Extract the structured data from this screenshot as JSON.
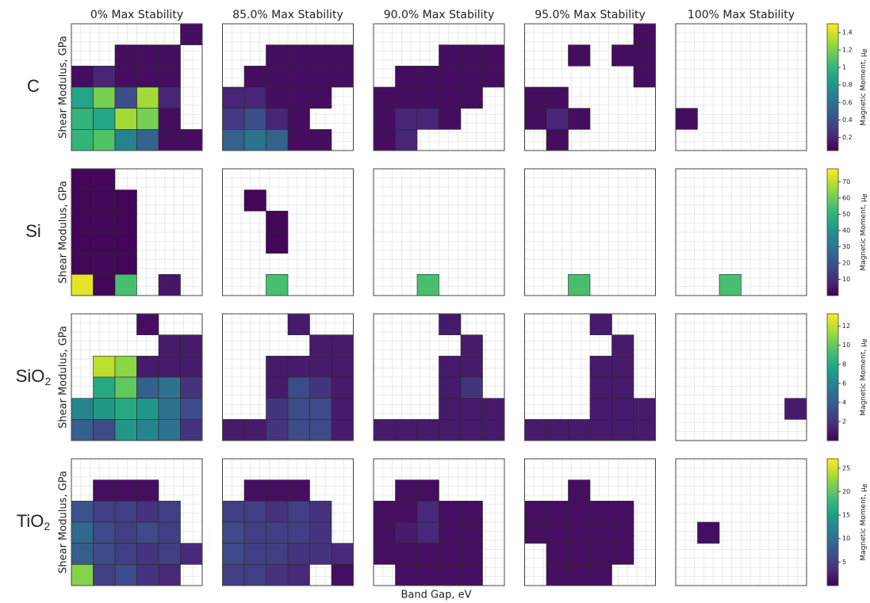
{
  "chart_data": {
    "type": "heatmap-grid",
    "colormap": "viridis",
    "columns": [
      "0% Max Stability",
      "85.0% Max Stability",
      "90.0% Max Stability",
      "95.0% Max Stability",
      "100% Max Stability"
    ],
    "xlabel": "Band Gap, eV",
    "ylabel": "Shear Modulus, GPa",
    "colorbar_label": "Magnetic Moment, μ",
    "colorbar_label_sub": "B",
    "rows": [
      {
        "label": "C",
        "clim": [
          0.05,
          1.5
        ],
        "cticks": [
          0.2,
          0.4,
          0.6,
          0.8,
          1.0,
          1.2,
          1.4
        ],
        "panels": [
          [
            [
              null,
              null,
              null,
              null,
              null,
              0.1
            ],
            [
              null,
              null,
              0.1,
              0.1,
              0.1,
              null
            ],
            [
              0.1,
              0.2,
              0.1,
              0.1,
              0.1,
              null
            ],
            [
              0.9,
              1.2,
              0.4,
              1.3,
              0.2,
              null
            ],
            [
              1.0,
              0.9,
              1.3,
              1.2,
              0.1,
              null
            ],
            [
              1.0,
              1.1,
              0.7,
              0.5,
              0.1,
              0.1
            ]
          ],
          [
            [
              null,
              null,
              null,
              null,
              null,
              null
            ],
            [
              null,
              null,
              0.1,
              0.1,
              0.1,
              0.1
            ],
            [
              null,
              0.1,
              0.1,
              0.1,
              0.1,
              0.1
            ],
            [
              0.2,
              0.2,
              0.1,
              0.1,
              0.1,
              null
            ],
            [
              0.3,
              0.4,
              0.2,
              0.1,
              null,
              null
            ],
            [
              0.5,
              0.6,
              0.5,
              0.1,
              0.1,
              null
            ]
          ],
          [
            [
              null,
              null,
              null,
              null,
              null,
              null
            ],
            [
              null,
              null,
              null,
              0.1,
              0.1,
              0.1
            ],
            [
              null,
              0.1,
              0.1,
              0.1,
              0.1,
              0.1
            ],
            [
              0.1,
              0.1,
              0.1,
              0.1,
              0.1,
              null
            ],
            [
              0.1,
              0.2,
              0.2,
              0.1,
              null,
              null
            ],
            [
              0.1,
              0.2,
              null,
              null,
              null,
              null
            ]
          ],
          [
            [
              null,
              null,
              null,
              null,
              null,
              0.1
            ],
            [
              null,
              null,
              0.1,
              null,
              0.1,
              0.1
            ],
            [
              null,
              null,
              null,
              null,
              null,
              0.1
            ],
            [
              0.1,
              0.1,
              null,
              null,
              null,
              null
            ],
            [
              0.1,
              0.2,
              0.1,
              null,
              null,
              null
            ],
            [
              null,
              0.1,
              null,
              null,
              null,
              null
            ]
          ],
          [
            [
              null,
              null,
              null,
              null,
              null,
              null
            ],
            [
              null,
              null,
              null,
              null,
              null,
              null
            ],
            [
              null,
              null,
              null,
              null,
              null,
              null
            ],
            [
              null,
              null,
              null,
              null,
              null,
              null
            ],
            [
              0.1,
              null,
              null,
              null,
              null,
              null
            ],
            [
              null,
              null,
              null,
              null,
              null,
              null
            ]
          ]
        ]
      },
      {
        "label": "Si",
        "clim": [
          0,
          78
        ],
        "cticks": [
          10,
          20,
          30,
          40,
          50,
          60,
          70
        ],
        "panels": [
          [
            [
              1,
              1,
              null,
              null,
              null,
              null
            ],
            [
              1,
              1,
              1,
              null,
              null,
              null
            ],
            [
              1,
              1,
              1,
              null,
              null,
              null
            ],
            [
              1,
              1,
              1,
              null,
              null,
              null
            ],
            [
              1,
              1,
              1,
              null,
              null,
              null
            ],
            [
              75,
              1,
              55,
              null,
              5,
              null
            ]
          ],
          [
            [
              null,
              null,
              null,
              null,
              null,
              null
            ],
            [
              null,
              1,
              null,
              null,
              null,
              null
            ],
            [
              null,
              null,
              1,
              null,
              null,
              null
            ],
            [
              null,
              null,
              1,
              null,
              null,
              null
            ],
            [
              null,
              null,
              null,
              null,
              null,
              null
            ],
            [
              null,
              null,
              55,
              null,
              null,
              null
            ]
          ],
          [
            [
              null,
              null,
              null,
              null,
              null,
              null
            ],
            [
              null,
              null,
              null,
              null,
              null,
              null
            ],
            [
              null,
              null,
              null,
              null,
              null,
              null
            ],
            [
              null,
              null,
              null,
              null,
              null,
              null
            ],
            [
              null,
              null,
              null,
              null,
              null,
              null
            ],
            [
              null,
              null,
              55,
              null,
              null,
              null
            ]
          ],
          [
            [
              null,
              null,
              null,
              null,
              null,
              null
            ],
            [
              null,
              null,
              null,
              null,
              null,
              null
            ],
            [
              null,
              null,
              null,
              null,
              null,
              null
            ],
            [
              null,
              null,
              null,
              null,
              null,
              null
            ],
            [
              null,
              null,
              null,
              null,
              null,
              null
            ],
            [
              null,
              null,
              55,
              null,
              null,
              null
            ]
          ],
          [
            [
              null,
              null,
              null,
              null,
              null,
              null
            ],
            [
              null,
              null,
              null,
              null,
              null,
              null
            ],
            [
              null,
              null,
              null,
              null,
              null,
              null
            ],
            [
              null,
              null,
              null,
              null,
              null,
              null
            ],
            [
              null,
              null,
              null,
              null,
              null,
              null
            ],
            [
              null,
              null,
              55,
              null,
              null,
              null
            ]
          ]
        ]
      },
      {
        "label": "SiO",
        "sub": "2",
        "clim": [
          0,
          13.3
        ],
        "cticks": [
          2,
          4,
          6,
          8,
          10,
          12
        ],
        "panels": [
          [
            [
              null,
              null,
              null,
              0.5,
              null,
              null
            ],
            [
              null,
              null,
              null,
              null,
              1,
              1
            ],
            [
              null,
              12,
              11,
              1,
              1,
              1
            ],
            [
              null,
              8,
              10,
              4,
              5,
              2
            ],
            [
              6,
              7,
              8,
              7,
              5,
              3
            ],
            [
              4,
              3,
              7,
              6,
              5,
              2
            ]
          ],
          [
            [
              null,
              null,
              null,
              1,
              null,
              null
            ],
            [
              null,
              null,
              null,
              null,
              1,
              1
            ],
            [
              null,
              null,
              1,
              1,
              1,
              1
            ],
            [
              null,
              null,
              1,
              3,
              2,
              1
            ],
            [
              null,
              null,
              2,
              3,
              3,
              1
            ],
            [
              1,
              1,
              2,
              3,
              3,
              1
            ]
          ],
          [
            [
              null,
              null,
              null,
              1,
              null,
              null
            ],
            [
              null,
              null,
              null,
              null,
              1,
              null
            ],
            [
              null,
              null,
              null,
              1,
              1,
              null
            ],
            [
              null,
              null,
              null,
              1,
              2,
              null
            ],
            [
              null,
              null,
              null,
              1,
              1,
              1
            ],
            [
              1,
              1,
              1,
              1,
              1,
              1
            ]
          ],
          [
            [
              null,
              null,
              null,
              1,
              null,
              null
            ],
            [
              null,
              null,
              null,
              null,
              1,
              null
            ],
            [
              null,
              null,
              null,
              1,
              1,
              null
            ],
            [
              null,
              null,
              null,
              1,
              1,
              null
            ],
            [
              null,
              null,
              null,
              1,
              1,
              1
            ],
            [
              1,
              1,
              1,
              1,
              1,
              1
            ]
          ],
          [
            [
              null,
              null,
              null,
              null,
              null,
              null
            ],
            [
              null,
              null,
              null,
              null,
              null,
              null
            ],
            [
              null,
              null,
              null,
              null,
              null,
              null
            ],
            [
              null,
              null,
              null,
              null,
              null,
              null
            ],
            [
              null,
              null,
              null,
              null,
              null,
              1
            ],
            [
              null,
              null,
              null,
              null,
              null,
              null
            ]
          ]
        ]
      },
      {
        "label": "TiO",
        "sub": "2",
        "clim": [
          0,
          27
        ],
        "cticks": [
          5,
          10,
          15,
          20,
          25
        ],
        "panels": [
          [
            [
              null,
              null,
              null,
              null,
              null,
              null
            ],
            [
              null,
              1,
              1,
              1,
              null,
              null
            ],
            [
              7,
              5,
              5,
              4,
              5,
              null
            ],
            [
              9,
              6,
              5,
              6,
              5,
              null
            ],
            [
              8,
              6,
              5,
              4,
              5,
              3
            ],
            [
              22,
              5,
              6,
              4,
              3,
              null
            ]
          ],
          [
            [
              null,
              null,
              null,
              null,
              null,
              null
            ],
            [
              null,
              1,
              1,
              1,
              null,
              null
            ],
            [
              5,
              5,
              4,
              5,
              4,
              null
            ],
            [
              6,
              5,
              5,
              5,
              4,
              null
            ],
            [
              6,
              5,
              5,
              4,
              4,
              3
            ],
            [
              5,
              5,
              4,
              3,
              null,
              1
            ]
          ],
          [
            [
              null,
              null,
              null,
              null,
              null,
              null
            ],
            [
              null,
              1,
              1,
              null,
              null,
              null
            ],
            [
              1,
              1,
              3,
              1,
              1,
              null
            ],
            [
              1,
              2,
              3,
              1,
              1,
              null
            ],
            [
              1,
              1,
              1,
              1,
              1,
              null
            ],
            [
              null,
              1,
              1,
              1,
              1,
              null
            ]
          ],
          [
            [
              null,
              null,
              null,
              null,
              null,
              null
            ],
            [
              null,
              null,
              1,
              null,
              null,
              null
            ],
            [
              1,
              1,
              1,
              1,
              1,
              null
            ],
            [
              1,
              1,
              1,
              1,
              1,
              null
            ],
            [
              null,
              1,
              1,
              1,
              1,
              null
            ],
            [
              null,
              1,
              1,
              1,
              null,
              null
            ]
          ],
          [
            [
              null,
              null,
              null,
              null,
              null,
              null
            ],
            [
              null,
              null,
              null,
              null,
              null,
              null
            ],
            [
              null,
              null,
              null,
              null,
              null,
              null
            ],
            [
              null,
              1,
              null,
              null,
              null,
              null
            ],
            [
              null,
              null,
              null,
              null,
              null,
              null
            ],
            [
              null,
              null,
              null,
              null,
              null,
              null
            ]
          ]
        ]
      }
    ]
  }
}
